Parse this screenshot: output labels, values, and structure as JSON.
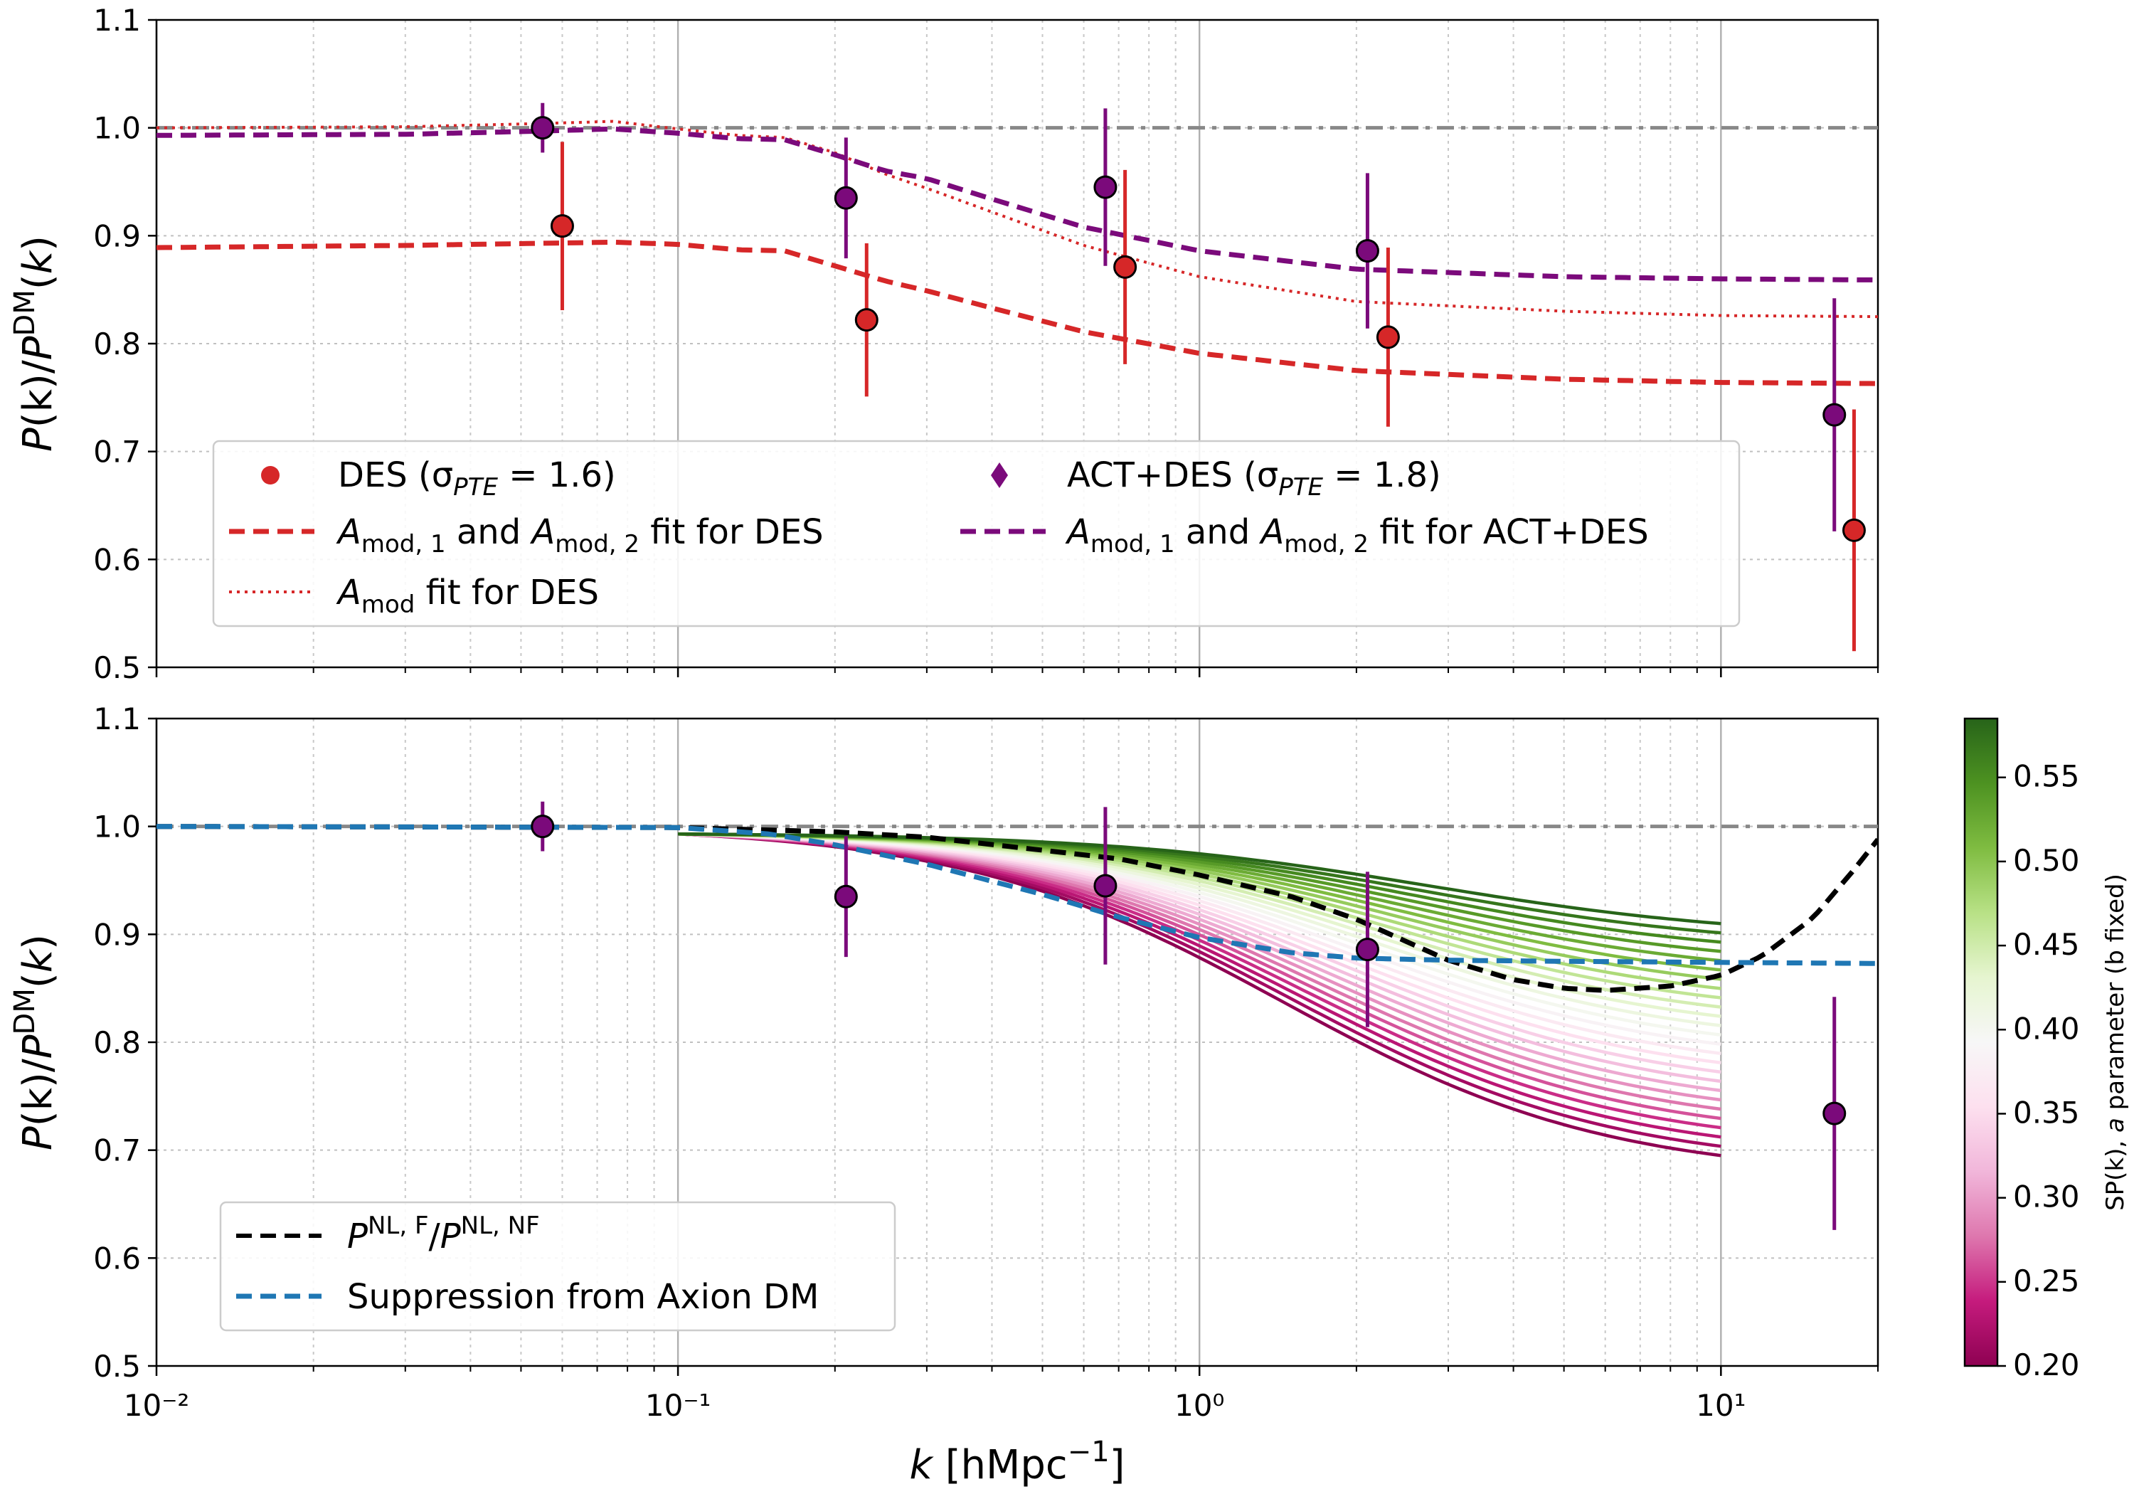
{
  "chart_data": [
    {
      "type": "scatter",
      "panel": "top",
      "title": "",
      "xlabel": "",
      "ylabel": "P(k)/P^DM(k)",
      "xscale": "log",
      "xlim": [
        0.01,
        20
      ],
      "ylim": [
        0.5,
        1.1
      ],
      "yticks": [
        0.5,
        0.6,
        0.7,
        0.8,
        0.9,
        1.0,
        1.1
      ],
      "ytick_labels": [
        "0.5",
        "0.6",
        "0.7",
        "0.8",
        "0.9",
        "1.0",
        "1.1"
      ],
      "grid": true,
      "reference_line": {
        "y": 1.0,
        "style": "dashdot",
        "color": "#888888"
      },
      "legend_position": "lower-left",
      "series": [
        {
          "name": "DES (σ_PTE = 1.6)",
          "kind": "points",
          "color": "#d62728",
          "x": [
            0.06,
            0.23,
            0.72,
            2.3,
            18.0
          ],
          "y": [
            0.909,
            0.822,
            0.871,
            0.806,
            0.627
          ],
          "err": [
            0.078,
            0.071,
            0.09,
            0.083,
            0.112
          ]
        },
        {
          "name": "ACT+DES (σ_PTE = 1.8)",
          "kind": "points",
          "color": "#7b0a7b",
          "x": [
            0.055,
            0.21,
            0.66,
            2.1,
            16.5
          ],
          "y": [
            1.0,
            0.935,
            0.945,
            0.886,
            0.734
          ],
          "err": [
            0.023,
            0.056,
            0.073,
            0.072,
            0.108
          ]
        },
        {
          "name": "A_mod,1 and A_mod,2 fit for DES",
          "kind": "line",
          "style": "dashed",
          "color": "#d62728",
          "x": [
            0.01,
            0.03,
            0.055,
            0.075,
            0.1,
            0.13,
            0.16,
            0.2,
            0.25,
            0.3,
            0.4,
            0.6,
            1.0,
            2.0,
            5.0,
            10.0,
            20.0
          ],
          "y": [
            0.889,
            0.891,
            0.893,
            0.894,
            0.892,
            0.887,
            0.886,
            0.872,
            0.858,
            0.849,
            0.833,
            0.811,
            0.791,
            0.775,
            0.767,
            0.764,
            0.763
          ]
        },
        {
          "name": "A_mod fit for DES",
          "kind": "line",
          "style": "dotted",
          "color": "#d62728",
          "x": [
            0.01,
            0.03,
            0.055,
            0.075,
            0.1,
            0.13,
            0.16,
            0.2,
            0.25,
            0.3,
            0.4,
            0.6,
            1.0,
            2.0,
            5.0,
            10.0,
            20.0
          ],
          "y": [
            1.0,
            1.001,
            1.004,
            1.006,
            0.999,
            0.993,
            0.991,
            0.977,
            0.957,
            0.944,
            0.922,
            0.891,
            0.862,
            0.839,
            0.83,
            0.826,
            0.825
          ]
        },
        {
          "name": "A_mod,1 and A_mod,2 fit for ACT+DES",
          "kind": "line",
          "style": "dashed",
          "color": "#7b0a7b",
          "x": [
            0.01,
            0.03,
            0.055,
            0.075,
            0.1,
            0.13,
            0.16,
            0.2,
            0.25,
            0.3,
            0.4,
            0.6,
            1.0,
            2.0,
            5.0,
            10.0,
            20.0
          ],
          "y": [
            0.993,
            0.994,
            0.997,
            0.999,
            0.995,
            0.99,
            0.989,
            0.975,
            0.96,
            0.953,
            0.934,
            0.908,
            0.886,
            0.869,
            0.862,
            0.86,
            0.859
          ]
        }
      ],
      "legend": {
        "col1": [
          {
            "symbol": "●",
            "label": "DES (σ",
            "sub": "PTE",
            "tail": " = 1.6)"
          },
          {
            "label": "A",
            "sub": "mod, 1",
            "mid": " and A",
            "sub2": "mod, 2",
            "tail": " fit for DES"
          },
          {
            "label": "A",
            "sub": "mod",
            "tail": " fit for DES"
          }
        ],
        "col2": [
          {
            "symbol": "♦",
            "label": "ACT+DES (σ",
            "sub": "PTE",
            "tail": " = 1.8)"
          },
          {
            "label": "A",
            "sub": "mod, 1",
            "mid": " and A",
            "sub2": "mod, 2",
            "tail": " fit for ACT+DES"
          }
        ]
      }
    },
    {
      "type": "line",
      "panel": "bottom",
      "title": "",
      "xlabel": "k [hMpc⁻¹]",
      "ylabel": "P(k)/P^DM(k)",
      "xscale": "log",
      "xlim": [
        0.01,
        20
      ],
      "ylim": [
        0.5,
        1.1
      ],
      "xticks": [
        0.01,
        0.1,
        1,
        10
      ],
      "xtick_labels": [
        "10⁻²",
        "10⁻¹",
        "10⁰",
        "10¹"
      ],
      "yticks": [
        0.5,
        0.6,
        0.7,
        0.8,
        0.9,
        1.0,
        1.1
      ],
      "ytick_labels": [
        "0.5",
        "0.6",
        "0.7",
        "0.8",
        "0.9",
        "1.0",
        "1.1"
      ],
      "grid": true,
      "reference_line": {
        "y": 1.0,
        "style": "dashdot",
        "color": "#888888"
      },
      "legend_position": "lower-left",
      "sp_family": {
        "name": "SP(k) curves, varying a (b fixed)",
        "a_min": 0.2,
        "a_max": 0.585,
        "count": 26,
        "k_min": 0.1,
        "k_max": 10,
        "endpoint_low_a": 0.695,
        "endpoint_high_a": 0.91
      },
      "series": [
        {
          "name": "ACT+DES",
          "kind": "points",
          "color": "#7b0a7b",
          "x": [
            0.055,
            0.21,
            0.66,
            2.1,
            16.5
          ],
          "y": [
            1.0,
            0.935,
            0.945,
            0.886,
            0.734
          ],
          "err": [
            0.023,
            0.056,
            0.073,
            0.072,
            0.108
          ]
        },
        {
          "name": "P^NL,F/P^NL,NF",
          "kind": "line",
          "style": "dashed",
          "color": "#000000",
          "x": [
            0.01,
            0.1,
            0.2,
            0.3,
            0.5,
            0.7,
            1.0,
            1.5,
            2.0,
            3.0,
            4.0,
            5.0,
            6.0,
            8.0,
            10.0,
            12.0,
            15.0,
            18.0,
            20.0
          ],
          "y": [
            1.0,
            0.999,
            0.995,
            0.99,
            0.978,
            0.97,
            0.955,
            0.935,
            0.914,
            0.876,
            0.858,
            0.85,
            0.848,
            0.852,
            0.862,
            0.88,
            0.915,
            0.96,
            0.988
          ]
        },
        {
          "name": "Suppression from Axion DM",
          "kind": "line",
          "style": "dashed",
          "color": "#1f77b4",
          "x": [
            0.01,
            0.1,
            0.15,
            0.2,
            0.3,
            0.5,
            0.7,
            1.0,
            1.5,
            2.0,
            3.0,
            5.0,
            10.0,
            20.0
          ],
          "y": [
            1.0,
            0.999,
            0.993,
            0.983,
            0.965,
            0.937,
            0.916,
            0.897,
            0.883,
            0.878,
            0.876,
            0.875,
            0.874,
            0.873
          ]
        }
      ],
      "legend": {
        "items": [
          {
            "label": "P",
            "sup": "NL, F",
            "mid": "/P",
            "sup2": "NL, NF"
          },
          {
            "label": "Suppression from Axion DM"
          }
        ]
      },
      "colorbar": {
        "label": "SP(k), a parameter (b fixed)",
        "range": [
          0.2,
          0.585
        ],
        "ticks": [
          "0.20",
          "0.25",
          "0.30",
          "0.35",
          "0.40",
          "0.45",
          "0.50",
          "0.55"
        ],
        "colormap": "PiYG",
        "stops": [
          "#8e0152",
          "#c51b7d",
          "#de77ae",
          "#f1b6da",
          "#fde0ef",
          "#f7f7f7",
          "#e6f5d0",
          "#b8e186",
          "#7fbc41",
          "#4d9221",
          "#276419"
        ]
      }
    }
  ]
}
